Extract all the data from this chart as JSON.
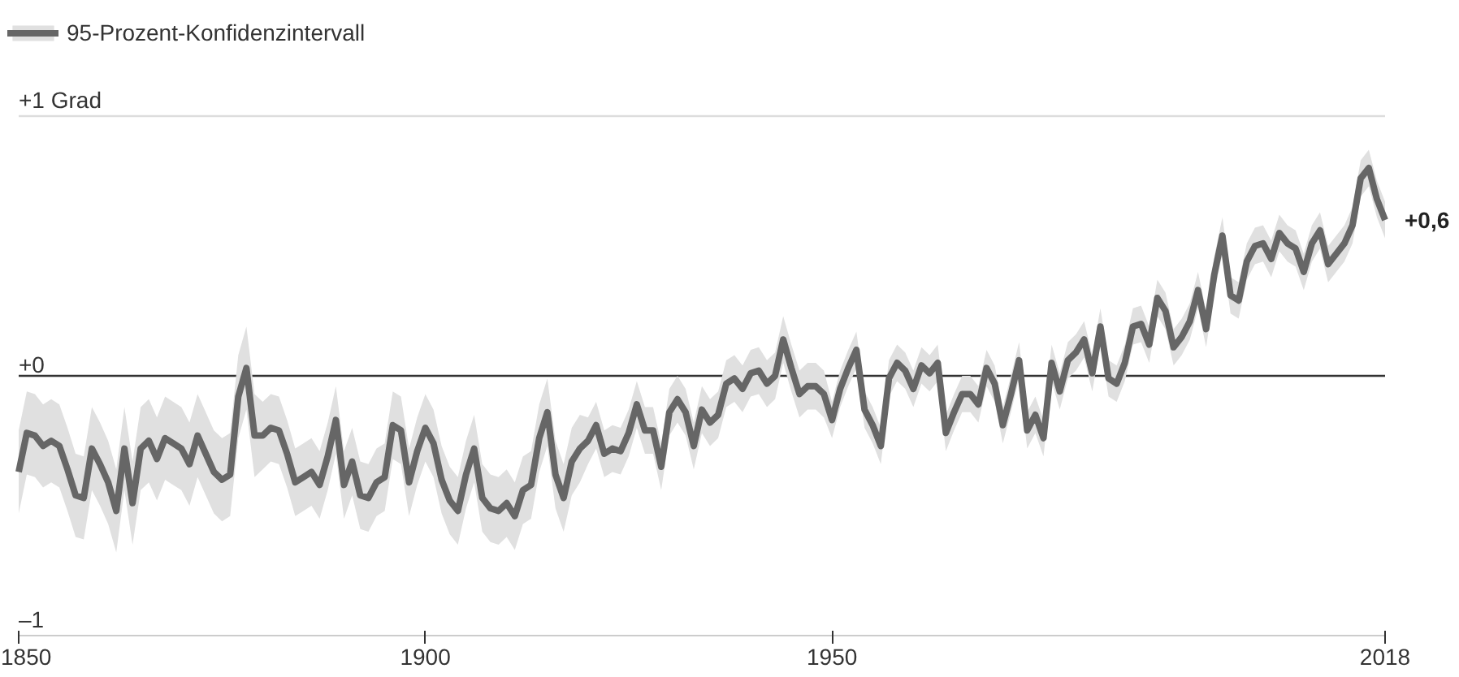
{
  "chart_data": {
    "type": "line",
    "x": [
      1850,
      1851,
      1852,
      1853,
      1854,
      1855,
      1856,
      1857,
      1858,
      1859,
      1860,
      1861,
      1862,
      1863,
      1864,
      1865,
      1866,
      1867,
      1868,
      1869,
      1870,
      1871,
      1872,
      1873,
      1874,
      1875,
      1876,
      1877,
      1878,
      1879,
      1880,
      1881,
      1882,
      1883,
      1884,
      1885,
      1886,
      1887,
      1888,
      1889,
      1890,
      1891,
      1892,
      1893,
      1894,
      1895,
      1896,
      1897,
      1898,
      1899,
      1900,
      1901,
      1902,
      1903,
      1904,
      1905,
      1906,
      1907,
      1908,
      1909,
      1910,
      1911,
      1912,
      1913,
      1914,
      1915,
      1916,
      1917,
      1918,
      1919,
      1920,
      1921,
      1922,
      1923,
      1924,
      1925,
      1926,
      1927,
      1928,
      1929,
      1930,
      1931,
      1932,
      1933,
      1934,
      1935,
      1936,
      1937,
      1938,
      1939,
      1940,
      1941,
      1942,
      1943,
      1944,
      1945,
      1946,
      1947,
      1948,
      1949,
      1950,
      1951,
      1952,
      1953,
      1954,
      1955,
      1956,
      1957,
      1958,
      1959,
      1960,
      1961,
      1962,
      1963,
      1964,
      1965,
      1966,
      1967,
      1968,
      1969,
      1970,
      1971,
      1972,
      1973,
      1974,
      1975,
      1976,
      1977,
      1978,
      1979,
      1980,
      1981,
      1982,
      1983,
      1984,
      1985,
      1986,
      1987,
      1988,
      1989,
      1990,
      1991,
      1992,
      1993,
      1994,
      1995,
      1996,
      1997,
      1998,
      1999,
      2000,
      2001,
      2002,
      2003,
      2004,
      2005,
      2006,
      2007,
      2008,
      2009,
      2010,
      2011,
      2012,
      2013,
      2014,
      2015,
      2016,
      2017,
      2018
    ],
    "series": [
      {
        "name": "95-Prozent-Konfidenzintervall",
        "color": "#666666",
        "values": [
          -0.37,
          -0.22,
          -0.23,
          -0.27,
          -0.25,
          -0.27,
          -0.36,
          -0.46,
          -0.47,
          -0.28,
          -0.34,
          -0.41,
          -0.52,
          -0.28,
          -0.49,
          -0.28,
          -0.25,
          -0.32,
          -0.24,
          -0.26,
          -0.28,
          -0.34,
          -0.23,
          -0.3,
          -0.37,
          -0.4,
          -0.38,
          -0.08,
          0.03,
          -0.23,
          -0.23,
          -0.2,
          -0.21,
          -0.3,
          -0.41,
          -0.39,
          -0.37,
          -0.42,
          -0.31,
          -0.17,
          -0.42,
          -0.33,
          -0.46,
          -0.47,
          -0.41,
          -0.39,
          -0.19,
          -0.21,
          -0.41,
          -0.29,
          -0.2,
          -0.26,
          -0.4,
          -0.48,
          -0.52,
          -0.38,
          -0.28,
          -0.47,
          -0.51,
          -0.52,
          -0.49,
          -0.54,
          -0.44,
          -0.42,
          -0.24,
          -0.14,
          -0.38,
          -0.47,
          -0.33,
          -0.28,
          -0.25,
          -0.19,
          -0.3,
          -0.28,
          -0.29,
          -0.22,
          -0.11,
          -0.21,
          -0.21,
          -0.35,
          -0.14,
          -0.09,
          -0.14,
          -0.27,
          -0.13,
          -0.18,
          -0.15,
          -0.03,
          -0.01,
          -0.05,
          0.01,
          0.02,
          -0.03,
          0.0,
          0.14,
          0.03,
          -0.07,
          -0.04,
          -0.04,
          -0.07,
          -0.17,
          -0.05,
          0.03,
          0.1,
          -0.13,
          -0.19,
          -0.27,
          -0.01,
          0.05,
          0.02,
          -0.05,
          0.04,
          0.01,
          0.05,
          -0.22,
          -0.14,
          -0.07,
          -0.07,
          -0.11,
          0.03,
          -0.03,
          -0.19,
          -0.07,
          0.06,
          -0.21,
          -0.15,
          -0.24,
          0.05,
          -0.06,
          0.06,
          0.09,
          0.14,
          0.01,
          0.19,
          -0.01,
          -0.03,
          0.05,
          0.19,
          0.2,
          0.12,
          0.3,
          0.25,
          0.11,
          0.15,
          0.21,
          0.33,
          0.18,
          0.39,
          0.54,
          0.31,
          0.29,
          0.44,
          0.5,
          0.51,
          0.45,
          0.55,
          0.51,
          0.49,
          0.4,
          0.51,
          0.56,
          0.43,
          0.47,
          0.51,
          0.58,
          0.76,
          0.8,
          0.68,
          0.6
        ],
        "lower": [
          -0.53,
          -0.38,
          -0.39,
          -0.43,
          -0.41,
          -0.43,
          -0.52,
          -0.62,
          -0.63,
          -0.44,
          -0.5,
          -0.57,
          -0.68,
          -0.44,
          -0.65,
          -0.44,
          -0.41,
          -0.48,
          -0.4,
          -0.42,
          -0.44,
          -0.5,
          -0.39,
          -0.46,
          -0.53,
          -0.56,
          -0.54,
          -0.24,
          -0.13,
          -0.39,
          -0.36,
          -0.33,
          -0.34,
          -0.43,
          -0.54,
          -0.52,
          -0.5,
          -0.55,
          -0.44,
          -0.3,
          -0.55,
          -0.46,
          -0.59,
          -0.6,
          -0.54,
          -0.52,
          -0.32,
          -0.34,
          -0.54,
          -0.42,
          -0.33,
          -0.39,
          -0.53,
          -0.61,
          -0.65,
          -0.51,
          -0.41,
          -0.6,
          -0.64,
          -0.65,
          -0.62,
          -0.67,
          -0.57,
          -0.55,
          -0.37,
          -0.27,
          -0.51,
          -0.6,
          -0.46,
          -0.41,
          -0.34,
          -0.28,
          -0.39,
          -0.37,
          -0.38,
          -0.31,
          -0.2,
          -0.3,
          -0.3,
          -0.44,
          -0.23,
          -0.18,
          -0.23,
          -0.36,
          -0.22,
          -0.27,
          -0.24,
          -0.12,
          -0.1,
          -0.14,
          -0.08,
          -0.07,
          -0.12,
          -0.09,
          0.05,
          -0.06,
          -0.16,
          -0.13,
          -0.13,
          -0.16,
          -0.24,
          -0.12,
          -0.04,
          0.03,
          -0.2,
          -0.26,
          -0.34,
          -0.08,
          -0.02,
          -0.05,
          -0.12,
          -0.03,
          -0.06,
          -0.02,
          -0.29,
          -0.21,
          -0.14,
          -0.14,
          -0.18,
          -0.04,
          -0.1,
          -0.26,
          -0.14,
          -0.01,
          -0.28,
          -0.22,
          -0.31,
          -0.02,
          -0.13,
          -0.01,
          0.02,
          0.07,
          -0.06,
          0.12,
          -0.08,
          -0.1,
          -0.02,
          0.12,
          0.13,
          0.05,
          0.23,
          0.18,
          0.04,
          0.08,
          0.14,
          0.26,
          0.11,
          0.32,
          0.47,
          0.24,
          0.22,
          0.37,
          0.43,
          0.44,
          0.38,
          0.48,
          0.44,
          0.42,
          0.33,
          0.44,
          0.49,
          0.36,
          0.4,
          0.44,
          0.51,
          0.69,
          0.73,
          0.61,
          0.53
        ],
        "upper": [
          -0.21,
          -0.06,
          -0.07,
          -0.11,
          -0.09,
          -0.11,
          -0.2,
          -0.3,
          -0.31,
          -0.12,
          -0.18,
          -0.25,
          -0.36,
          -0.12,
          -0.33,
          -0.12,
          -0.09,
          -0.16,
          -0.08,
          -0.1,
          -0.12,
          -0.18,
          -0.07,
          -0.14,
          -0.21,
          -0.24,
          -0.22,
          0.08,
          0.19,
          -0.07,
          -0.1,
          -0.07,
          -0.08,
          -0.17,
          -0.28,
          -0.26,
          -0.24,
          -0.29,
          -0.18,
          -0.04,
          -0.29,
          -0.2,
          -0.33,
          -0.34,
          -0.28,
          -0.26,
          -0.06,
          -0.08,
          -0.28,
          -0.16,
          -0.07,
          -0.13,
          -0.27,
          -0.35,
          -0.39,
          -0.25,
          -0.15,
          -0.34,
          -0.38,
          -0.39,
          -0.36,
          -0.41,
          -0.31,
          -0.29,
          -0.11,
          -0.01,
          -0.25,
          -0.34,
          -0.2,
          -0.15,
          -0.16,
          -0.1,
          -0.21,
          -0.19,
          -0.2,
          -0.13,
          -0.02,
          -0.12,
          -0.12,
          -0.26,
          -0.05,
          0.0,
          -0.05,
          -0.18,
          -0.04,
          -0.09,
          -0.06,
          0.06,
          0.08,
          0.04,
          0.1,
          0.11,
          0.06,
          0.09,
          0.23,
          0.12,
          0.02,
          0.05,
          0.05,
          0.02,
          -0.1,
          0.02,
          0.1,
          0.17,
          -0.06,
          -0.12,
          -0.2,
          0.06,
          0.12,
          0.09,
          0.02,
          0.11,
          0.08,
          0.12,
          -0.15,
          -0.07,
          0.0,
          0.0,
          -0.04,
          0.1,
          0.04,
          -0.12,
          0.0,
          0.13,
          -0.14,
          -0.08,
          -0.17,
          0.12,
          0.01,
          0.13,
          0.16,
          0.21,
          0.08,
          0.26,
          0.06,
          0.04,
          0.12,
          0.26,
          0.27,
          0.19,
          0.37,
          0.32,
          0.18,
          0.22,
          0.28,
          0.4,
          0.25,
          0.46,
          0.61,
          0.38,
          0.36,
          0.51,
          0.57,
          0.58,
          0.52,
          0.62,
          0.58,
          0.56,
          0.47,
          0.58,
          0.63,
          0.5,
          0.54,
          0.58,
          0.65,
          0.83,
          0.87,
          0.75,
          0.67
        ]
      }
    ],
    "xlim": [
      1850,
      2018
    ],
    "xticks": [
      1850,
      1900,
      1950,
      2018
    ],
    "ylim": [
      -1,
      1
    ],
    "yticks": [
      {
        "value": 1,
        "label": "+1 Grad"
      },
      {
        "value": 0,
        "label": "+0"
      },
      {
        "value": -1,
        "label": "–1"
      }
    ],
    "ref_lines": [
      {
        "axis": "y",
        "value": 0,
        "label": null,
        "color": "#333333"
      },
      {
        "axis": "y",
        "value": 1,
        "label": null,
        "color": "#dddddd"
      }
    ],
    "annotations": [
      {
        "text": "+0,6",
        "x": 2018,
        "y": 0.6
      }
    ],
    "legend": "top left",
    "marker": "none",
    "line_style": "solid"
  }
}
